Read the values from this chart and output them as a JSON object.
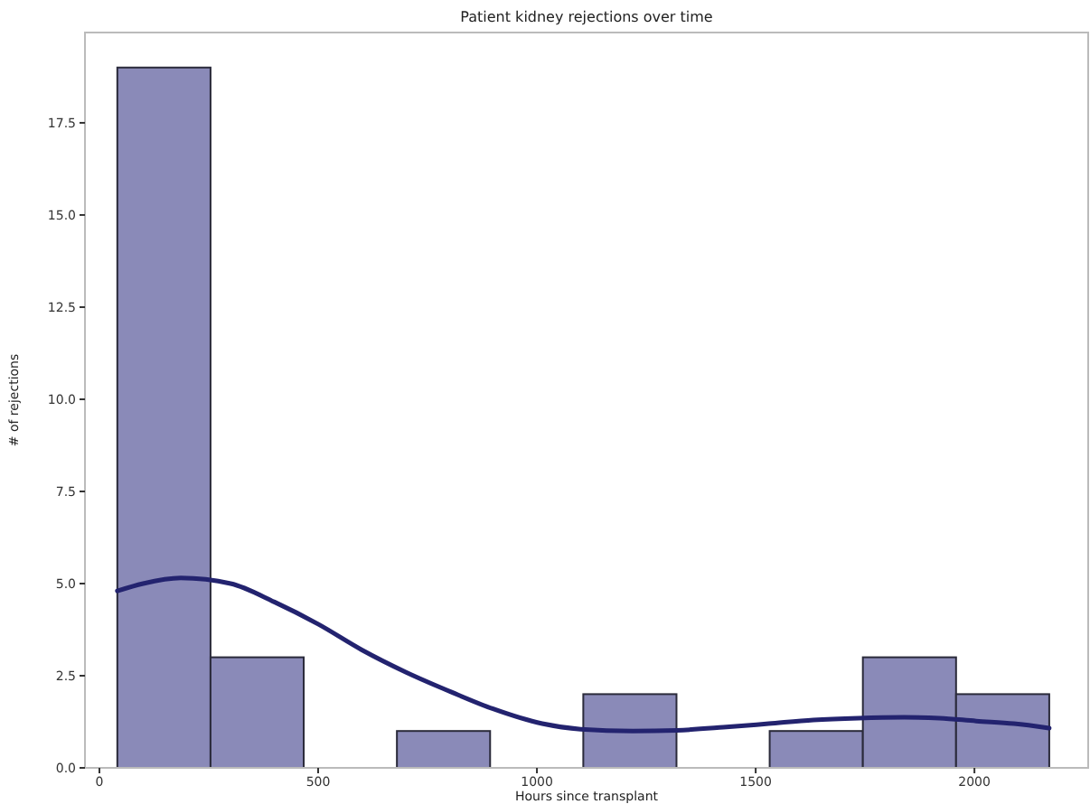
{
  "chart_data": {
    "type": "histogram",
    "title": "Patient kidney rejections over time",
    "xlabel": "Hours since transplant",
    "ylabel": "# of rejections",
    "bins": [
      41,
      254,
      467,
      680,
      893,
      1106,
      1319,
      1532,
      1745,
      1958,
      2171
    ],
    "values": [
      19,
      3,
      0,
      1,
      0,
      2,
      0,
      1,
      3,
      2
    ],
    "color": "#8a8ab8",
    "series": [
      {
        "type": "line",
        "color": "#23236f",
        "x": [
          41,
          100,
          186,
          300,
          400,
          500,
          600,
          700,
          806,
          900,
          1012,
          1100,
          1219,
          1320,
          1426,
          1530,
          1632,
          1735,
          1839,
          1920,
          2004,
          2090,
          2171
        ],
        "values": [
          4.8,
          5.0,
          5.15,
          5.0,
          4.5,
          3.9,
          3.2,
          2.6,
          2.05,
          1.6,
          1.2,
          1.05,
          1.0,
          1.02,
          1.1,
          1.2,
          1.3,
          1.35,
          1.37,
          1.35,
          1.27,
          1.2,
          1.08
        ]
      }
    ],
    "xlim": [
      -33,
      2260
    ],
    "ylim": [
      0,
      19.95
    ],
    "xticks": [
      0,
      500,
      1000,
      1500,
      2000
    ],
    "yticks": [
      {
        "value": 0,
        "label": "0.0"
      },
      {
        "value": 2.5,
        "label": "2.5"
      },
      {
        "value": 5,
        "label": "5.0"
      },
      {
        "value": 7.5,
        "label": "7.5"
      },
      {
        "value": 10,
        "label": "10.0"
      },
      {
        "value": 12.5,
        "label": "12.5"
      },
      {
        "value": 15,
        "label": "15.0"
      },
      {
        "value": 17.5,
        "label": "17.5"
      }
    ]
  }
}
